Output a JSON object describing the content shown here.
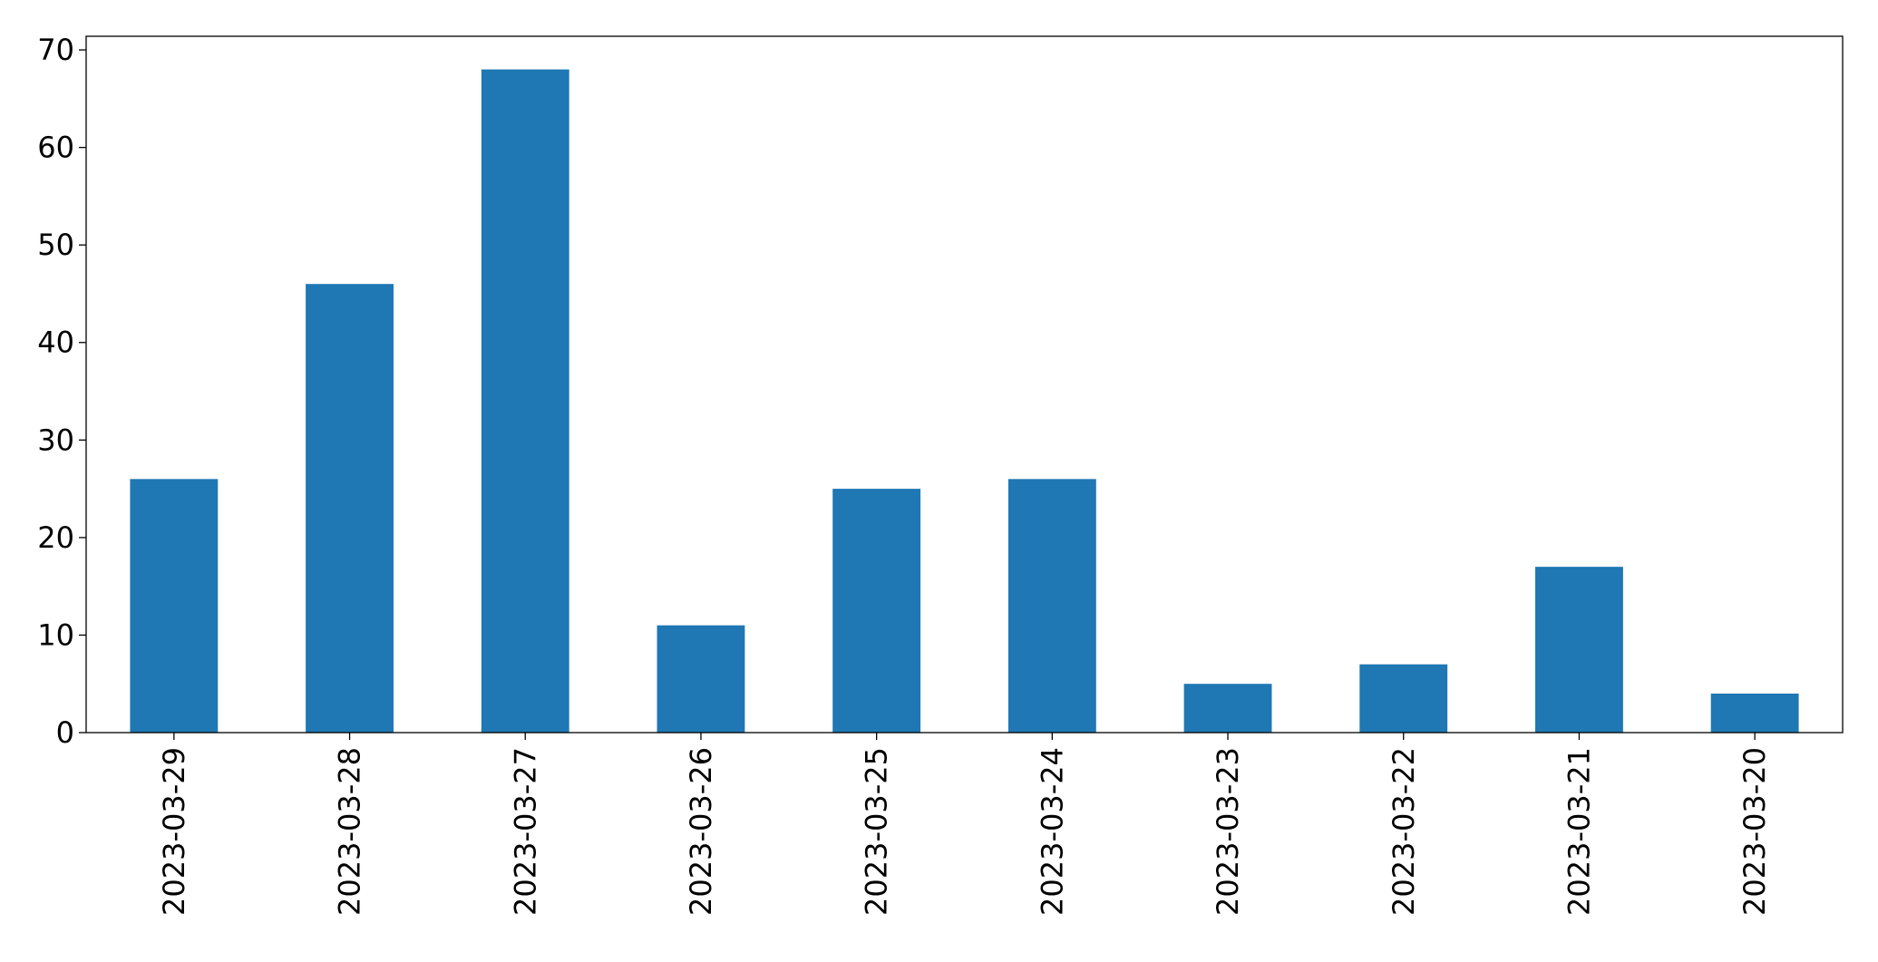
{
  "chart_data": {
    "type": "bar",
    "categories": [
      "2023-03-29",
      "2023-03-28",
      "2023-03-27",
      "2023-03-26",
      "2023-03-25",
      "2023-03-24",
      "2023-03-23",
      "2023-03-22",
      "2023-03-21",
      "2023-03-20"
    ],
    "values": [
      26,
      46,
      68,
      11,
      25,
      26,
      5,
      7,
      17,
      4
    ],
    "color": "#1f77b4",
    "ylim": [
      0,
      71.4
    ],
    "yticks": [
      0,
      10,
      20,
      30,
      40,
      50,
      60,
      70
    ],
    "grid": false
  }
}
